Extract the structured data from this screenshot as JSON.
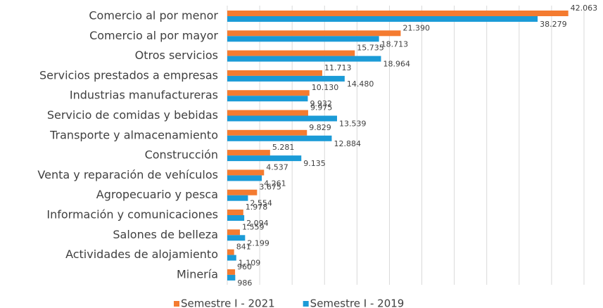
{
  "chart_data": {
    "type": "bar",
    "orientation": "horizontal",
    "categories": [
      "Comercio al por menor",
      "Comercio al por mayor",
      "Otros servicios",
      "Servicios prestados a empresas",
      "Industrias manufactureras",
      "Servicio de comidas y bebidas",
      "Transporte y almacenamiento",
      "Construcción",
      "Venta y reparación de vehículos",
      "Agropecuario y pesca",
      "Información y comunicaciones",
      "Salones de belleza",
      "Actividades de alojamiento",
      "Minería"
    ],
    "series": [
      {
        "name": "Semestre I - 2021",
        "color": "#f47b30",
        "values": [
          42063,
          21390,
          15735,
          11713,
          10130,
          9975,
          9829,
          5281,
          4537,
          3675,
          1978,
          1559,
          841,
          960
        ],
        "value_labels": [
          "42.063",
          "21.390",
          "15.735",
          "11.713",
          "10.130",
          "9.975",
          "9.829",
          "5.281",
          "4.537",
          "3.675",
          "1.978",
          "1.559",
          "841",
          "960"
        ]
      },
      {
        "name": "Semestre I - 2019",
        "color": "#1b9bd7",
        "values": [
          38279,
          18713,
          18964,
          14480,
          9932,
          13539,
          12884,
          9135,
          4261,
          2554,
          2094,
          2199,
          1109,
          986
        ],
        "value_labels": [
          "38.279",
          "18.713",
          "18.964",
          "14.480",
          "9.932",
          "13.539",
          "12.884",
          "9.135",
          "4.261",
          "2.554",
          "2.094",
          "2.199",
          "1.109",
          "986"
        ]
      }
    ],
    "xlim": [
      0,
      44000
    ],
    "xticks": [
      0,
      4000,
      8000,
      12000,
      16000,
      20000,
      24000,
      28000,
      32000,
      36000,
      40000,
      44000
    ],
    "grid": true,
    "legend": "bottom"
  }
}
